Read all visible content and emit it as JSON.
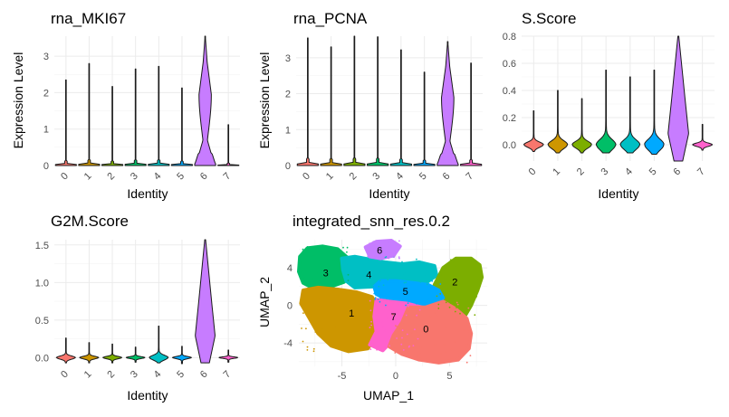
{
  "colors": {
    "0": "#F8766D",
    "1": "#CD9600",
    "2": "#7CAE00",
    "3": "#00BE67",
    "4": "#00BFC4",
    "5": "#00A9FF",
    "6": "#C77CFF",
    "7": "#FF61CC"
  },
  "chart_data": [
    {
      "type": "violin",
      "title": "rna_MKI67",
      "xlabel": "Identity",
      "ylabel": "Expression Level",
      "categories": [
        "0",
        "1",
        "2",
        "3",
        "4",
        "5",
        "6",
        "7"
      ],
      "ylim": [
        0,
        3.55
      ],
      "yticks": [
        0,
        1,
        2,
        3
      ],
      "max_values": [
        2.35,
        2.8,
        2.17,
        2.65,
        2.72,
        2.13,
        3.55,
        1.12
      ],
      "grid": true
    },
    {
      "type": "violin",
      "title": "rna_PCNA",
      "xlabel": "Identity",
      "ylabel": "Expression Level",
      "categories": [
        "0",
        "1",
        "2",
        "3",
        "4",
        "5",
        "6",
        "7"
      ],
      "ylim": [
        0,
        3.6
      ],
      "yticks": [
        0,
        1,
        2,
        3
      ],
      "max_values": [
        3.55,
        3.3,
        3.6,
        3.58,
        3.22,
        2.6,
        3.45,
        2.85
      ],
      "grid": true
    },
    {
      "type": "violin",
      "title": "S.Score",
      "xlabel": "Identity",
      "ylabel": "",
      "categories": [
        "0",
        "1",
        "2",
        "3",
        "4",
        "5",
        "6",
        "7"
      ],
      "ylim": [
        -0.12,
        0.8
      ],
      "yticks": [
        0.0,
        0.2,
        0.4,
        0.6,
        0.8
      ],
      "max_values": [
        0.25,
        0.4,
        0.34,
        0.55,
        0.5,
        0.55,
        0.8,
        0.15
      ],
      "min_values": [
        -0.05,
        -0.06,
        -0.06,
        -0.06,
        -0.06,
        -0.07,
        -0.12,
        -0.04
      ],
      "grid": true
    },
    {
      "type": "violin",
      "title": "G2M.Score",
      "xlabel": "Identity",
      "ylabel": "",
      "categories": [
        "0",
        "1",
        "2",
        "3",
        "4",
        "5",
        "6",
        "7"
      ],
      "ylim": [
        -0.08,
        1.57
      ],
      "yticks": [
        0.0,
        0.5,
        1.0,
        1.5
      ],
      "max_values": [
        0.26,
        0.2,
        0.18,
        0.14,
        0.42,
        0.15,
        1.57,
        0.1
      ],
      "min_values": [
        -0.07,
        -0.07,
        -0.07,
        -0.06,
        -0.07,
        -0.08,
        -0.07,
        -0.06
      ],
      "grid": true
    },
    {
      "type": "scatter",
      "title": "integrated_snn_res.0.2",
      "xlabel": "UMAP_1",
      "ylabel": "UMAP_2",
      "xlim": [
        -9,
        8.5
      ],
      "ylim": [
        -6.5,
        7
      ],
      "xticks": [
        -5,
        0,
        5
      ],
      "yticks": [
        -4,
        0,
        4
      ],
      "grid": true,
      "clusters": [
        {
          "label": "0",
          "center": [
            2.8,
            -2.5
          ]
        },
        {
          "label": "1",
          "center": [
            -4.1,
            -0.8
          ]
        },
        {
          "label": "2",
          "center": [
            5.5,
            2.5
          ]
        },
        {
          "label": "3",
          "center": [
            -6.5,
            3.5
          ]
        },
        {
          "label": "4",
          "center": [
            -2.5,
            3.3
          ]
        },
        {
          "label": "5",
          "center": [
            0.9,
            1.5
          ]
        },
        {
          "label": "6",
          "center": [
            -1.5,
            5.9
          ]
        },
        {
          "label": "7",
          "center": [
            -0.2,
            -1.2
          ]
        }
      ]
    }
  ]
}
